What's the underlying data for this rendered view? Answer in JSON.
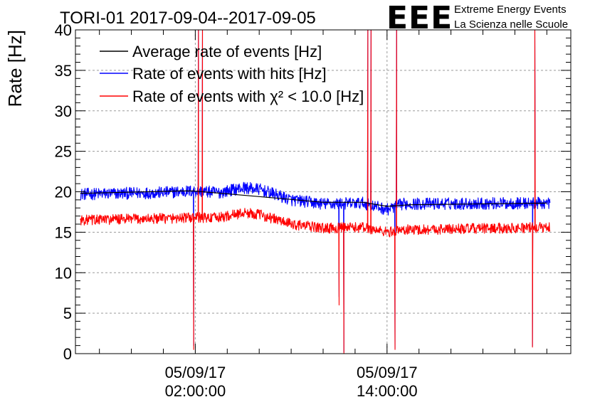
{
  "colors": {
    "average": "#000000",
    "hits": "#0000ff",
    "chi2": "#ff0000",
    "logo": "#0000ff"
  },
  "logo": {
    "mark": "EEE",
    "line1": "Extreme Energy Events",
    "line2": "La Scienza nelle Scuole"
  },
  "chart_data": {
    "type": "line",
    "title": "TORI-01 2017-09-04--2017-09-05",
    "ylabel": "Rate [Hz]",
    "xlabel": "",
    "ylim": [
      0,
      40
    ],
    "xlim_hours": [
      -5.5,
      25.5
    ],
    "x_axis": "time (hours relative to 05/09/17 00:00:00)",
    "grid": true,
    "legend_position": "top-left",
    "yticks": [
      "0",
      "5",
      "10",
      "15",
      "20",
      "25",
      "30",
      "35",
      "40"
    ],
    "xticks": [
      {
        "hour": 2,
        "date": "05/09/17",
        "time": "02:00:00"
      },
      {
        "hour": 14,
        "date": "05/09/17",
        "time": "14:00:00"
      }
    ],
    "legend": [
      {
        "key": "average",
        "label": "Average rate of events [Hz]"
      },
      {
        "key": "hits",
        "label": "Rate of events with hits [Hz]"
      },
      {
        "key": "chi2",
        "label": "Rate of events with χ² < 10.0 [Hz]"
      }
    ],
    "series": [
      {
        "name": "Average rate of events [Hz]",
        "key": "average",
        "points": [
          [
            -5.2,
            19.8
          ],
          [
            1.0,
            20.1
          ],
          [
            1.9,
            20.1
          ],
          [
            6.0,
            19.4
          ],
          [
            10.0,
            18.7
          ],
          [
            12.5,
            18.7
          ],
          [
            14.0,
            18.2
          ],
          [
            15.5,
            18.4
          ],
          [
            20.0,
            18.5
          ],
          [
            24.0,
            18.6
          ]
        ]
      },
      {
        "name": "Rate of events with hits [Hz]",
        "key": "hits",
        "base": [
          [
            -5.2,
            19.7
          ],
          [
            0.0,
            19.9
          ],
          [
            1.9,
            20.1
          ],
          [
            3.5,
            19.9
          ],
          [
            5.0,
            20.5
          ],
          [
            6.0,
            20.3
          ],
          [
            8.0,
            19.0
          ],
          [
            10.0,
            18.5
          ],
          [
            12.5,
            18.6
          ],
          [
            14.0,
            17.8
          ],
          [
            15.0,
            18.5
          ],
          [
            24.2,
            18.6
          ]
        ],
        "noise": 0.75,
        "dropouts": [
          [
            1.9,
            1.0
          ],
          [
            2.2,
            40.0
          ],
          [
            2.45,
            40.0
          ],
          [
            11.0,
            7.0
          ],
          [
            11.3,
            0.2
          ],
          [
            12.8,
            40.0
          ],
          [
            13.0,
            40.0
          ],
          [
            14.5,
            0.6
          ],
          [
            14.6,
            40.0
          ],
          [
            23.1,
            0.9
          ],
          [
            23.25,
            40.0
          ]
        ]
      },
      {
        "name": "Rate of events with χ² < 10.0 [Hz]",
        "key": "chi2",
        "base": [
          [
            -5.2,
            16.5
          ],
          [
            0.0,
            16.7
          ],
          [
            1.9,
            16.8
          ],
          [
            3.5,
            16.8
          ],
          [
            5.0,
            17.4
          ],
          [
            6.0,
            17.2
          ],
          [
            8.0,
            16.0
          ],
          [
            10.0,
            15.5
          ],
          [
            12.5,
            15.6
          ],
          [
            14.0,
            15.0
          ],
          [
            15.0,
            15.3
          ],
          [
            24.2,
            15.6
          ]
        ],
        "noise": 0.65,
        "dropouts": [
          [
            1.9,
            0.5
          ],
          [
            2.2,
            40.0
          ],
          [
            2.45,
            40.0
          ],
          [
            11.0,
            6.0
          ],
          [
            11.3,
            0.0
          ],
          [
            12.8,
            40.0
          ],
          [
            13.0,
            40.0
          ],
          [
            14.5,
            0.5
          ],
          [
            14.6,
            40.0
          ],
          [
            23.1,
            0.8
          ],
          [
            23.25,
            40.0
          ]
        ]
      }
    ]
  }
}
